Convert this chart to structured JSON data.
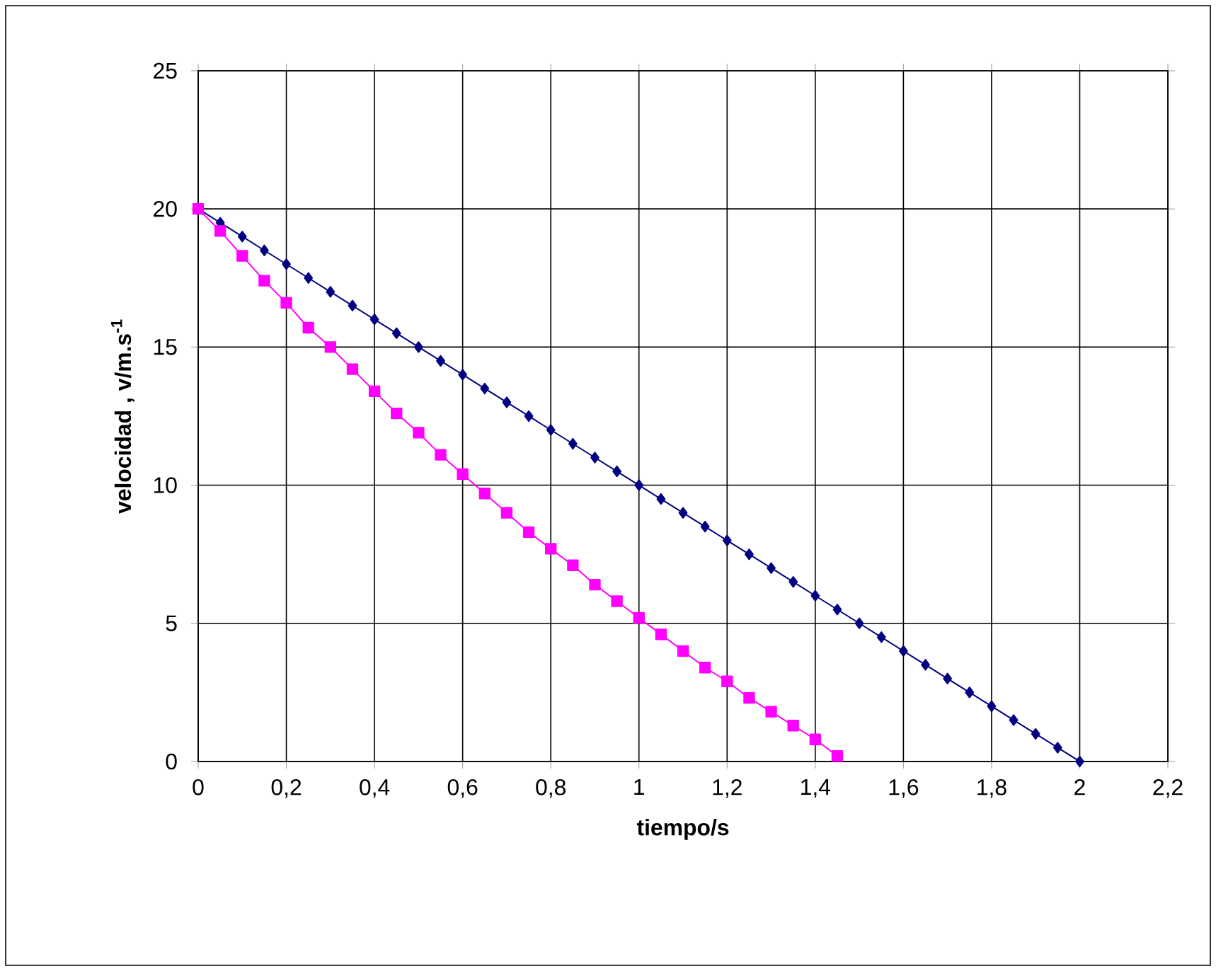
{
  "chart_data": {
    "type": "line",
    "xlabel": "tiempo/s",
    "ylabel": "velocidad , v/m.s$^{-1}$",
    "series": [
      {
        "color": "#000080",
        "marker": "diamond",
        "x": [
          0,
          0.05,
          0.1,
          0.15,
          0.2,
          0.25,
          0.3,
          0.35,
          0.4,
          0.45,
          0.5,
          0.55,
          0.6,
          0.65,
          0.7,
          0.75,
          0.8,
          0.85,
          0.9,
          0.95,
          1,
          1.05,
          1.1,
          1.15,
          1.2,
          1.25,
          1.3,
          1.35,
          1.4,
          1.45,
          1.5,
          1.55,
          1.6,
          1.65,
          1.7,
          1.75,
          1.8,
          1.85,
          1.9,
          1.95,
          2
        ],
        "values": [
          20,
          19.5,
          19,
          18.5,
          18,
          17.5,
          17,
          16.5,
          16,
          15.5,
          15,
          14.5,
          14,
          13.5,
          13,
          12.5,
          12,
          11.5,
          11,
          10.5,
          10,
          9.5,
          9,
          8.5,
          8,
          7.5,
          7,
          6.5,
          6,
          5.5,
          5,
          4.5,
          4,
          3.5,
          3,
          2.5,
          2,
          1.5,
          1,
          0.5,
          0
        ]
      },
      {
        "color": "#ff00ff",
        "marker": "square",
        "x": [
          0,
          0.05,
          0.1,
          0.15,
          0.2,
          0.25,
          0.3,
          0.35,
          0.4,
          0.45,
          0.5,
          0.55,
          0.6,
          0.65,
          0.7,
          0.75,
          0.8,
          0.85,
          0.9,
          0.95,
          1,
          1.05,
          1.1,
          1.15,
          1.2,
          1.25,
          1.3,
          1.35,
          1.4,
          1.45
        ],
        "values": [
          20,
          19.2,
          18.3,
          17.4,
          16.6,
          15.7,
          15,
          14.2,
          13.4,
          12.6,
          11.9,
          11.1,
          10.4,
          9.7,
          9,
          8.3,
          7.7,
          7.1,
          6.4,
          5.8,
          5.2,
          4.6,
          4,
          3.4,
          2.9,
          2.3,
          1.8,
          1.3,
          0.8,
          0.2
        ]
      }
    ],
    "xlim": [
      0,
      2.2
    ],
    "xticks": [
      0,
      {
        "value": 0.2,
        "label": "0,2"
      },
      {
        "value": 0.4,
        "label": "0,4"
      },
      {
        "value": 0.6,
        "label": "0,6"
      },
      {
        "value": 0.8,
        "label": "0,8"
      },
      1,
      {
        "value": 1.2,
        "label": "1,2"
      },
      {
        "value": 1.4,
        "label": "1,4"
      },
      {
        "value": 1.6,
        "label": "1,6"
      },
      {
        "value": 1.8,
        "label": "1,8"
      },
      2,
      {
        "value": 2.2,
        "label": "2,2"
      }
    ],
    "ylim": [
      0,
      25
    ],
    "yticks": [
      0,
      5,
      10,
      15,
      20,
      25
    ],
    "grid": true
  }
}
